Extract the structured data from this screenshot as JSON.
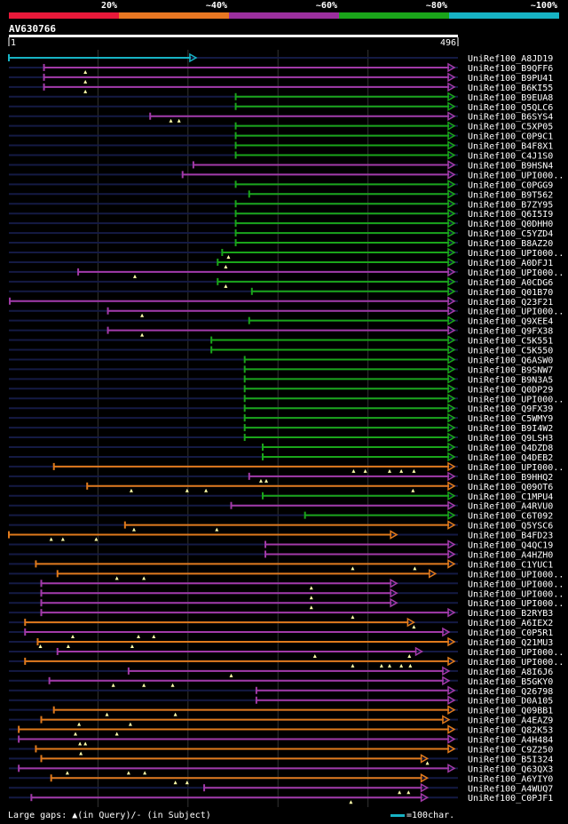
{
  "chart_data": {
    "type": "alignment-map",
    "title": "AV630766",
    "query_start": "1",
    "query_end": "496",
    "query_length": 496,
    "identity_bins": [
      {
        "label": "20%",
        "color": "#e8193a"
      },
      {
        "label": "~40%",
        "color": "#e87722"
      },
      {
        "label": "~60%",
        "color": "#9b2f9e"
      },
      {
        "label": "~80%",
        "color": "#1aa51a"
      },
      {
        "label": "~100%",
        "color": "#17b3c4"
      }
    ],
    "colors": {
      "cyan": "#17b3c4",
      "green": "#1aa51a",
      "purple": "#a23aa8",
      "orange": "#e07a1c",
      "track": "#141a44",
      "grid": "#333333"
    },
    "hits": [
      {
        "name": "UniRef100_A8JD19",
        "start": 1,
        "end": 209,
        "color": "cyan"
      },
      {
        "name": "UniRef100_B9QFF6",
        "start": 40,
        "end": 496,
        "color": "purple",
        "gaps": [
          86
        ]
      },
      {
        "name": "UniRef100_B9PU41",
        "start": 40,
        "end": 496,
        "color": "purple",
        "gaps": [
          86
        ]
      },
      {
        "name": "UniRef100_B6KI55",
        "start": 40,
        "end": 496,
        "color": "purple",
        "gaps": [
          86
        ]
      },
      {
        "name": "UniRef100_B9EUA8",
        "start": 253,
        "end": 496,
        "color": "green"
      },
      {
        "name": "UniRef100_Q5QLC6",
        "start": 253,
        "end": 496,
        "color": "green"
      },
      {
        "name": "UniRef100_B6SYS4",
        "start": 158,
        "end": 496,
        "color": "purple",
        "gaps": [
          181,
          190
        ]
      },
      {
        "name": "UniRef100_C5XP05",
        "start": 253,
        "end": 496,
        "color": "green"
      },
      {
        "name": "UniRef100_C0P9C1",
        "start": 253,
        "end": 496,
        "color": "green"
      },
      {
        "name": "UniRef100_B4F8X1",
        "start": 253,
        "end": 496,
        "color": "green"
      },
      {
        "name": "UniRef100_C4J1S0",
        "start": 253,
        "end": 496,
        "color": "green"
      },
      {
        "name": "UniRef100_B9HSN4",
        "start": 206,
        "end": 496,
        "color": "purple"
      },
      {
        "name": "UniRef100_UPI000..",
        "start": 194,
        "end": 496,
        "color": "purple"
      },
      {
        "name": "UniRef100_C0PGG9",
        "start": 253,
        "end": 496,
        "color": "green"
      },
      {
        "name": "UniRef100_B9T562",
        "start": 268,
        "end": 496,
        "color": "green"
      },
      {
        "name": "UniRef100_B7ZY95",
        "start": 253,
        "end": 496,
        "color": "green"
      },
      {
        "name": "UniRef100_Q6I5I9",
        "start": 253,
        "end": 496,
        "color": "green"
      },
      {
        "name": "UniRef100_Q0DHH0",
        "start": 253,
        "end": 496,
        "color": "green"
      },
      {
        "name": "UniRef100_C5YZD4",
        "start": 253,
        "end": 496,
        "color": "green"
      },
      {
        "name": "UniRef100_B8AZ20",
        "start": 253,
        "end": 496,
        "color": "green"
      },
      {
        "name": "UniRef100_UPI000..",
        "start": 238,
        "end": 496,
        "color": "green",
        "gaps": [
          245
        ]
      },
      {
        "name": "UniRef100_A0DFJ1",
        "start": 233,
        "end": 496,
        "color": "green",
        "gaps": [
          242
        ]
      },
      {
        "name": "UniRef100_UPI000..",
        "start": 78,
        "end": 496,
        "color": "purple",
        "gaps": [
          141
        ]
      },
      {
        "name": "UniRef100_A0CDG6",
        "start": 233,
        "end": 496,
        "color": "green",
        "gaps": [
          242
        ]
      },
      {
        "name": "UniRef100_Q01B70",
        "start": 271,
        "end": 496,
        "color": "green"
      },
      {
        "name": "UniRef100_Q23F21",
        "start": 2,
        "end": 496,
        "color": "purple"
      },
      {
        "name": "UniRef100_UPI000..",
        "start": 111,
        "end": 496,
        "color": "purple",
        "gaps": [
          149
        ]
      },
      {
        "name": "UniRef100_Q9XEE4",
        "start": 268,
        "end": 496,
        "color": "green"
      },
      {
        "name": "UniRef100_Q9FX38",
        "start": 111,
        "end": 496,
        "color": "purple",
        "gaps": [
          149
        ]
      },
      {
        "name": "UniRef100_C5K551",
        "start": 226,
        "end": 496,
        "color": "green"
      },
      {
        "name": "UniRef100_C5K550",
        "start": 226,
        "end": 496,
        "color": "green"
      },
      {
        "name": "UniRef100_Q6ASW0",
        "start": 263,
        "end": 496,
        "color": "green"
      },
      {
        "name": "UniRef100_B9SNW7",
        "start": 263,
        "end": 496,
        "color": "green"
      },
      {
        "name": "UniRef100_B9N3A5",
        "start": 263,
        "end": 496,
        "color": "green"
      },
      {
        "name": "UniRef100_Q0DP29",
        "start": 263,
        "end": 496,
        "color": "green"
      },
      {
        "name": "UniRef100_UPI000..",
        "start": 263,
        "end": 496,
        "color": "green"
      },
      {
        "name": "UniRef100_Q9FX39",
        "start": 263,
        "end": 496,
        "color": "green"
      },
      {
        "name": "UniRef100_C5WMY9",
        "start": 263,
        "end": 496,
        "color": "green"
      },
      {
        "name": "UniRef100_B9I4W2",
        "start": 263,
        "end": 496,
        "color": "green"
      },
      {
        "name": "UniRef100_Q9LSH3",
        "start": 263,
        "end": 496,
        "color": "green"
      },
      {
        "name": "UniRef100_Q4DZD8",
        "start": 283,
        "end": 496,
        "color": "green"
      },
      {
        "name": "UniRef100_Q4DEB2",
        "start": 283,
        "end": 496,
        "color": "green"
      },
      {
        "name": "UniRef100_UPI000..",
        "start": 51,
        "end": 496,
        "color": "orange",
        "gaps": [
          384,
          397,
          424,
          437,
          451
        ]
      },
      {
        "name": "UniRef100_B9HHQ2",
        "start": 268,
        "end": 496,
        "color": "purple",
        "gaps": [
          281,
          287
        ]
      },
      {
        "name": "UniRef100_Q09OT6",
        "start": 88,
        "end": 496,
        "color": "orange",
        "gaps": [
          137,
          199,
          220,
          450
        ]
      },
      {
        "name": "UniRef100_C1MPU4",
        "start": 283,
        "end": 496,
        "color": "green"
      },
      {
        "name": "UniRef100_A4RVU0",
        "start": 248,
        "end": 496,
        "color": "purple"
      },
      {
        "name": "UniRef100_C6T092",
        "start": 330,
        "end": 496,
        "color": "green"
      },
      {
        "name": "UniRef100_Q5YSC6",
        "start": 130,
        "end": 496,
        "color": "orange",
        "gaps": [
          140,
          232
        ]
      },
      {
        "name": "UniRef100_B4FD23",
        "start": 1,
        "end": 432,
        "color": "orange",
        "gaps": [
          48,
          61,
          98
        ]
      },
      {
        "name": "UniRef100_Q4QC19",
        "start": 286,
        "end": 496,
        "color": "purple"
      },
      {
        "name": "UniRef100_A4HZH0",
        "start": 286,
        "end": 496,
        "color": "purple"
      },
      {
        "name": "UniRef100_C1YUC1",
        "start": 31,
        "end": 496,
        "color": "orange",
        "gaps": [
          383,
          452
        ]
      },
      {
        "name": "UniRef100_UPI000..",
        "start": 55,
        "end": 475,
        "color": "orange",
        "gaps": [
          121,
          151
        ]
      },
      {
        "name": "UniRef100_UPI000..",
        "start": 37,
        "end": 432,
        "color": "purple",
        "gaps": [
          337
        ]
      },
      {
        "name": "UniRef100_UPI000..",
        "start": 37,
        "end": 432,
        "color": "purple",
        "gaps": [
          337
        ]
      },
      {
        "name": "UniRef100_UPI000..",
        "start": 37,
        "end": 432,
        "color": "purple",
        "gaps": [
          337
        ]
      },
      {
        "name": "UniRef100_B2RYB3",
        "start": 37,
        "end": 496,
        "color": "purple",
        "gaps": [
          383
        ]
      },
      {
        "name": "UniRef100_A6IEX2",
        "start": 19,
        "end": 451,
        "color": "orange",
        "gaps": [
          451
        ]
      },
      {
        "name": "UniRef100_C0P5R1",
        "start": 19,
        "end": 490,
        "color": "purple",
        "gaps": [
          72,
          145,
          162
        ]
      },
      {
        "name": "UniRef100_Q21MU3",
        "start": 33,
        "end": 496,
        "color": "orange",
        "gaps": [
          36,
          67,
          138
        ]
      },
      {
        "name": "UniRef100_UPI000..",
        "start": 55,
        "end": 460,
        "color": "purple",
        "gaps": [
          341,
          446
        ]
      },
      {
        "name": "UniRef100_UPI000..",
        "start": 19,
        "end": 496,
        "color": "orange",
        "gaps": [
          383,
          415,
          424,
          437,
          447
        ]
      },
      {
        "name": "UniRef100_A8I6J6",
        "start": 134,
        "end": 490,
        "color": "purple",
        "gaps": [
          248
        ]
      },
      {
        "name": "UniRef100_B5GKY0",
        "start": 46,
        "end": 490,
        "color": "purple",
        "gaps": [
          117,
          151,
          183
        ]
      },
      {
        "name": "UniRef100_Q26798",
        "start": 276,
        "end": 496,
        "color": "purple"
      },
      {
        "name": "UniRef100_D0A105",
        "start": 276,
        "end": 496,
        "color": "purple"
      },
      {
        "name": "UniRef100_Q09BB1",
        "start": 51,
        "end": 496,
        "color": "orange",
        "gaps": [
          110,
          186
        ]
      },
      {
        "name": "UniRef100_A4EAZ9",
        "start": 37,
        "end": 490,
        "color": "orange",
        "gaps": [
          79,
          136
        ]
      },
      {
        "name": "UniRef100_Q82K53",
        "start": 12,
        "end": 496,
        "color": "orange",
        "gaps": [
          75,
          121
        ]
      },
      {
        "name": "UniRef100_A4H484",
        "start": 12,
        "end": 496,
        "color": "purple",
        "gaps": [
          80,
          86
        ]
      },
      {
        "name": "UniRef100_C9Z250",
        "start": 31,
        "end": 496,
        "color": "orange",
        "gaps": [
          81
        ]
      },
      {
        "name": "UniRef100_B5I324",
        "start": 37,
        "end": 466,
        "color": "orange",
        "gaps": [
          466
        ]
      },
      {
        "name": "UniRef100_Q63QX3",
        "start": 12,
        "end": 496,
        "color": "purple",
        "gaps": [
          66,
          134,
          152
        ]
      },
      {
        "name": "UniRef100_A6YIY0",
        "start": 48,
        "end": 466,
        "color": "orange",
        "gaps": [
          186,
          199
        ]
      },
      {
        "name": "UniRef100_A4WUQ7",
        "start": 218,
        "end": 466,
        "color": "purple",
        "gaps": [
          435,
          445
        ]
      },
      {
        "name": "UniRef100_C0PJF1",
        "start": 26,
        "end": 466,
        "color": "purple",
        "gaps": [
          381
        ]
      }
    ],
    "legend_left": "Large gaps: ▲(in Query)/- (in Subject)",
    "legend_right": "=100char."
  }
}
